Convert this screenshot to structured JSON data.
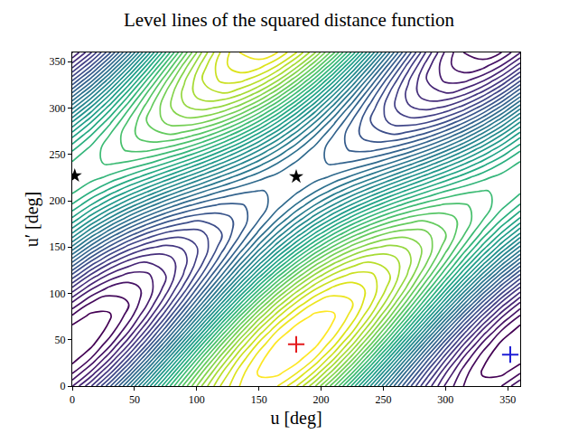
{
  "chart_data": {
    "type": "contour",
    "title": "Level lines of the squared distance function",
    "xlabel": "u [deg]",
    "ylabel": "u′ [deg]",
    "xlim": [
      0,
      360
    ],
    "ylim": [
      0,
      360
    ],
    "xticks": [
      0,
      50,
      100,
      150,
      200,
      250,
      300,
      350
    ],
    "yticks": [
      0,
      50,
      100,
      150,
      200,
      250,
      300,
      350
    ],
    "grid": false,
    "color": "viridis",
    "levels": {
      "start": 0.15,
      "end": 5.85,
      "step": 0.15
    },
    "x": [
      0,
      15,
      30,
      45,
      60,
      75,
      90,
      105,
      120,
      135,
      150,
      165,
      180,
      195,
      210,
      225,
      240,
      255,
      270,
      285,
      300,
      315,
      330,
      345,
      360
    ],
    "y": [
      0,
      15,
      30,
      45,
      60,
      75,
      90,
      105,
      120,
      135,
      150,
      165,
      180,
      195,
      210,
      225,
      240,
      255,
      270,
      285,
      300,
      315,
      330,
      345,
      360
    ],
    "z": [
      [
        0.59,
        1.03,
        1.61,
        2.29,
        3.02,
        3.74,
        4.41,
        4.99,
        5.43,
        5.71,
        5.8,
        5.7,
        5.41,
        4.97,
        4.39,
        3.71,
        2.98,
        2.26,
        1.59,
        1.01,
        0.57,
        0.29,
        0.2,
        0.3,
        0.59
      ],
      [
        0.27,
        0.62,
        1.13,
        1.77,
        2.5,
        3.26,
        4.0,
        4.67,
        5.23,
        5.64,
        5.87,
        5.9,
        5.73,
        5.38,
        4.87,
        4.23,
        3.5,
        2.74,
        2.0,
        1.33,
        0.77,
        0.36,
        0.13,
        0.1,
        0.27
      ],
      [
        0.07,
        0.3,
        0.72,
        1.29,
        1.98,
        2.74,
        3.52,
        4.26,
        4.91,
        5.44,
        5.8,
        5.97,
        5.93,
        5.7,
        5.28,
        4.71,
        4.02,
        3.26,
        2.48,
        1.74,
        1.09,
        0.56,
        0.2,
        0.03,
        0.07
      ],
      [
        0.0,
        0.1,
        0.4,
        0.88,
        1.5,
        2.22,
        3.0,
        3.78,
        4.5,
        5.12,
        5.6,
        5.9,
        6.0,
        5.9,
        5.6,
        5.12,
        4.5,
        3.78,
        3.0,
        2.22,
        1.5,
        0.88,
        0.4,
        0.1,
        0.0
      ],
      [
        0.07,
        0.03,
        0.2,
        0.56,
        1.09,
        1.74,
        2.48,
        3.26,
        4.02,
        4.71,
        5.28,
        5.7,
        5.93,
        5.97,
        5.8,
        5.44,
        4.91,
        4.26,
        3.52,
        2.74,
        1.98,
        1.29,
        0.72,
        0.3,
        0.07
      ],
      [
        0.27,
        0.1,
        0.13,
        0.36,
        0.77,
        1.33,
        2.0,
        2.74,
        3.5,
        4.23,
        4.87,
        5.38,
        5.73,
        5.9,
        5.87,
        5.64,
        5.23,
        4.67,
        4.0,
        3.26,
        2.5,
        1.77,
        1.13,
        0.62,
        0.27
      ],
      [
        0.59,
        0.3,
        0.2,
        0.29,
        0.57,
        1.01,
        1.59,
        2.26,
        2.98,
        3.71,
        4.39,
        4.97,
        5.41,
        5.7,
        5.8,
        5.71,
        5.43,
        4.99,
        4.41,
        3.74,
        3.02,
        2.29,
        1.61,
        1.03,
        0.59
      ],
      [
        1.0,
        0.62,
        0.4,
        0.36,
        0.5,
        0.81,
        1.27,
        1.85,
        2.5,
        3.19,
        3.87,
        4.49,
        5.0,
        5.38,
        5.6,
        5.64,
        5.5,
        5.19,
        4.73,
        4.15,
        3.5,
        2.81,
        2.13,
        1.51,
        1.0
      ],
      [
        1.48,
        1.03,
        0.72,
        0.56,
        0.57,
        0.74,
        1.07,
        1.53,
        2.09,
        2.71,
        3.35,
        3.97,
        4.52,
        4.97,
        5.28,
        5.44,
        5.43,
        5.26,
        4.93,
        4.47,
        3.91,
        3.29,
        2.65,
        2.03,
        1.48
      ],
      [
        2.0,
        1.51,
        1.13,
        0.88,
        0.77,
        0.81,
        1.0,
        1.33,
        1.77,
        2.3,
        2.87,
        3.45,
        4.0,
        4.49,
        4.87,
        5.12,
        5.23,
        5.19,
        5.0,
        4.67,
        4.23,
        3.7,
        3.13,
        2.55,
        2.0
      ],
      [
        2.52,
        2.03,
        1.61,
        1.29,
        1.09,
        1.01,
        1.07,
        1.26,
        1.57,
        1.98,
        2.46,
        2.97,
        3.48,
        3.97,
        4.39,
        4.71,
        4.91,
        4.99,
        4.93,
        4.74,
        4.43,
        4.02,
        3.54,
        3.03,
        2.52
      ],
      [
        3.0,
        2.55,
        2.13,
        1.77,
        1.5,
        1.33,
        1.27,
        1.33,
        1.5,
        1.78,
        2.14,
        2.56,
        3.0,
        3.45,
        3.87,
        4.23,
        4.5,
        4.67,
        4.73,
        4.67,
        4.5,
        4.22,
        3.86,
        3.44,
        3.0
      ],
      [
        3.41,
        3.03,
        2.65,
        2.29,
        1.98,
        1.74,
        1.59,
        1.53,
        1.57,
        1.71,
        1.94,
        2.24,
        2.59,
        2.97,
        3.35,
        3.71,
        4.02,
        4.26,
        4.41,
        4.47,
        4.43,
        4.29,
        4.06,
        3.76,
        3.41
      ],
      [
        3.73,
        3.44,
        3.13,
        2.81,
        2.5,
        2.22,
        2.0,
        1.85,
        1.77,
        1.78,
        1.87,
        2.04,
        2.27,
        2.56,
        2.87,
        3.19,
        3.5,
        3.78,
        4.0,
        4.15,
        4.23,
        4.22,
        4.13,
        3.96,
        3.73
      ],
      [
        3.93,
        3.76,
        3.54,
        3.29,
        3.02,
        2.74,
        2.48,
        2.26,
        2.09,
        1.98,
        1.94,
        1.97,
        2.07,
        2.24,
        2.46,
        2.71,
        2.98,
        3.26,
        3.52,
        3.74,
        3.91,
        4.02,
        4.06,
        4.03,
        3.93
      ],
      [
        4.0,
        3.96,
        3.86,
        3.7,
        3.5,
        3.26,
        3.0,
        2.74,
        2.5,
        2.3,
        2.14,
        2.04,
        2.0,
        2.04,
        2.14,
        2.3,
        2.5,
        2.74,
        3.0,
        3.26,
        3.5,
        3.7,
        3.86,
        3.96,
        4.0
      ],
      [
        3.93,
        4.03,
        4.06,
        4.02,
        3.91,
        3.74,
        3.52,
        3.26,
        2.98,
        2.71,
        2.46,
        2.24,
        2.07,
        1.97,
        1.94,
        1.98,
        2.09,
        2.26,
        2.48,
        2.74,
        3.02,
        3.29,
        3.54,
        3.76,
        3.93
      ],
      [
        3.73,
        3.96,
        4.13,
        4.22,
        4.23,
        4.15,
        4.0,
        3.78,
        3.5,
        3.19,
        2.87,
        2.56,
        2.27,
        2.04,
        1.87,
        1.78,
        1.77,
        1.85,
        2.0,
        2.22,
        2.5,
        2.81,
        3.13,
        3.44,
        3.73
      ],
      [
        3.41,
        3.76,
        4.06,
        4.29,
        4.43,
        4.47,
        4.41,
        4.26,
        4.02,
        3.71,
        3.35,
        2.97,
        2.59,
        2.24,
        1.94,
        1.71,
        1.57,
        1.53,
        1.59,
        1.74,
        1.98,
        2.29,
        2.65,
        3.03,
        3.41
      ],
      [
        3.0,
        3.44,
        3.86,
        4.22,
        4.5,
        4.67,
        4.73,
        4.67,
        4.5,
        4.23,
        3.87,
        3.45,
        3.0,
        2.56,
        2.14,
        1.78,
        1.5,
        1.33,
        1.27,
        1.33,
        1.5,
        1.77,
        2.13,
        2.55,
        3.0
      ],
      [
        2.52,
        3.03,
        3.54,
        4.02,
        4.43,
        4.74,
        4.93,
        4.99,
        4.91,
        4.71,
        4.39,
        3.97,
        3.48,
        2.97,
        2.46,
        1.98,
        1.57,
        1.26,
        1.07,
        1.01,
        1.09,
        1.29,
        1.61,
        2.03,
        2.52
      ],
      [
        2.0,
        2.55,
        3.13,
        3.7,
        4.23,
        4.67,
        5.0,
        5.19,
        5.23,
        5.12,
        4.87,
        4.49,
        4.0,
        3.45,
        2.87,
        2.3,
        1.77,
        1.33,
        1.0,
        0.81,
        0.77,
        0.88,
        1.13,
        1.51,
        2.0
      ],
      [
        1.48,
        2.03,
        2.65,
        3.29,
        3.91,
        4.47,
        4.93,
        5.26,
        5.43,
        5.44,
        5.28,
        4.97,
        4.52,
        3.97,
        3.35,
        2.71,
        2.09,
        1.53,
        1.07,
        0.74,
        0.57,
        0.56,
        0.72,
        1.03,
        1.48
      ],
      [
        1.0,
        1.51,
        2.13,
        2.81,
        3.5,
        4.15,
        4.73,
        5.19,
        5.5,
        5.64,
        5.6,
        5.38,
        5.0,
        4.49,
        3.87,
        3.19,
        2.5,
        1.85,
        1.27,
        0.81,
        0.5,
        0.36,
        0.4,
        0.62,
        1.0
      ],
      [
        0.59,
        1.03,
        1.61,
        2.29,
        3.02,
        3.74,
        4.41,
        4.99,
        5.43,
        5.71,
        5.8,
        5.7,
        5.41,
        4.97,
        4.39,
        3.71,
        2.98,
        2.26,
        1.59,
        1.01,
        0.57,
        0.29,
        0.2,
        0.3,
        0.59
      ]
    ],
    "points": [
      {
        "x": [
          2,
          180
        ],
        "y": [
          227,
          226
        ],
        "color": "#000000",
        "marker": "star"
      },
      {
        "x": [
          180
        ],
        "y": [
          45
        ],
        "color": "#e41a1c",
        "marker": "plus"
      },
      {
        "x": [
          352
        ],
        "y": [
          34
        ],
        "color": "#1f1fd6",
        "marker": "plus"
      }
    ]
  }
}
